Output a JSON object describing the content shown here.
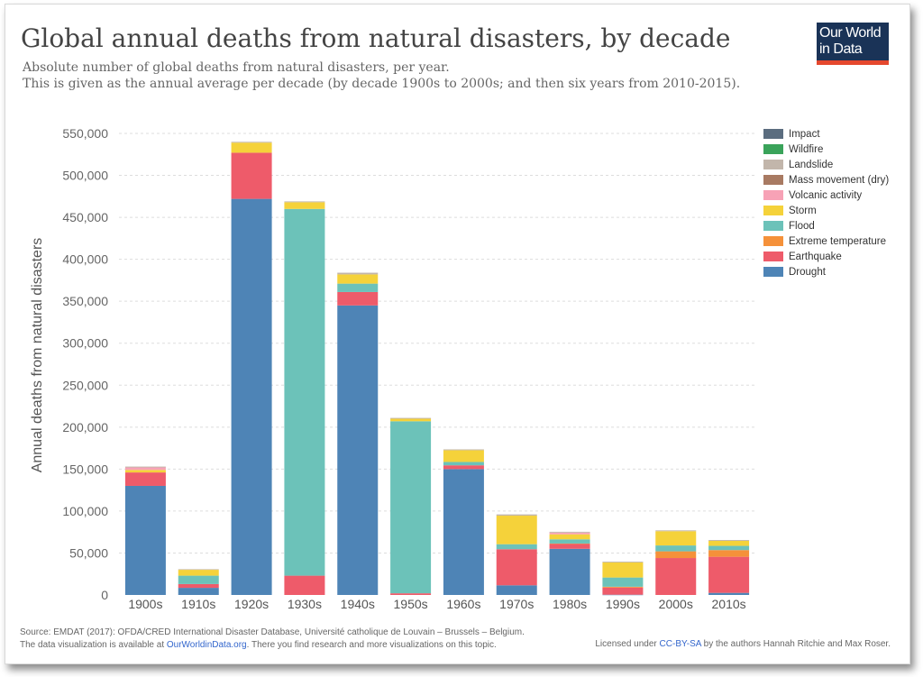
{
  "header": {
    "title": "Global annual deaths from natural disasters, by decade",
    "subtitle_line1": "Absolute number of global deaths from natural disasters, per year.",
    "subtitle_line2": "This is given as the annual average per decade (by decade 1900s to 2000s; and then six years from 2010-2015).",
    "logo_line1": "Our World",
    "logo_line2": "in Data"
  },
  "footer": {
    "source": "Source: EMDAT (2017): OFDA/CRED International Disaster Database, Université catholique de Louvain – Brussels – Belgium.",
    "availability_prefix": "The data visualization is available at ",
    "availability_link": "OurWorldinData.org",
    "availability_suffix": ". There you find research and more visualizations on this topic.",
    "license_prefix": "Licensed under ",
    "license_link": "CC-BY-SA",
    "license_suffix": " by the authors Hannah Ritchie and Max Roser."
  },
  "chart_data": {
    "type": "bar",
    "stacked": true,
    "title": "Global annual deaths from natural disasters, by decade",
    "xlabel": "",
    "ylabel": "Annual deaths from natural disasters",
    "ylim": [
      0,
      550000
    ],
    "yticks": [
      0,
      50000,
      100000,
      150000,
      200000,
      250000,
      300000,
      350000,
      400000,
      450000,
      500000,
      550000
    ],
    "ytick_labels": [
      "0",
      "50,000",
      "100,000",
      "150,000",
      "200,000",
      "250,000",
      "300,000",
      "350,000",
      "400,000",
      "450,000",
      "500,000",
      "550,000"
    ],
    "grid": true,
    "legend_position": "top-right",
    "categories": [
      "1900s",
      "1910s",
      "1920s",
      "1930s",
      "1940s",
      "1950s",
      "1960s",
      "1970s",
      "1980s",
      "1990s",
      "2000s",
      "2010s"
    ],
    "series": [
      {
        "name": "Drought",
        "color": "#4e84b6",
        "values": [
          130000,
          8500,
          472000,
          0,
          345000,
          0,
          150000,
          11500,
          55000,
          300,
          0,
          2500
        ]
      },
      {
        "name": "Earthquake",
        "color": "#ee5b6a",
        "values": [
          16000,
          4500,
          55000,
          23000,
          16000,
          2000,
          4500,
          43000,
          6000,
          8500,
          44000,
          43000
        ]
      },
      {
        "name": "Extreme temperature",
        "color": "#f5913a",
        "values": [
          0,
          0,
          0,
          0,
          0,
          0,
          0,
          0,
          300,
          1000,
          8000,
          8000
        ]
      },
      {
        "name": "Flood",
        "color": "#6cc2b9",
        "values": [
          0,
          10000,
          0,
          437000,
          10000,
          205000,
          4000,
          6000,
          5000,
          11000,
          7000,
          5000
        ]
      },
      {
        "name": "Storm",
        "color": "#f5d23a",
        "values": [
          3000,
          7000,
          12000,
          8000,
          11000,
          3000,
          14000,
          34000,
          6000,
          18000,
          17000,
          6000
        ]
      },
      {
        "name": "Volcanic activity",
        "color": "#f7a2b6",
        "values": [
          3000,
          0,
          0,
          0,
          0,
          0,
          0,
          0,
          2000,
          0,
          0,
          0
        ]
      },
      {
        "name": "Mass movement (dry)",
        "color": "#a87a62",
        "values": [
          0,
          0,
          0,
          0,
          0,
          0,
          0,
          0,
          0,
          0,
          0,
          0
        ]
      },
      {
        "name": "Landslide",
        "color": "#c2b6ab",
        "values": [
          1000,
          700,
          1000,
          1000,
          2000,
          1000,
          1000,
          1500,
          1000,
          1000,
          1000,
          1000
        ]
      },
      {
        "name": "Wildfire",
        "color": "#3aa35a",
        "values": [
          0,
          0,
          0,
          0,
          0,
          0,
          0,
          0,
          0,
          0,
          0,
          0
        ]
      },
      {
        "name": "Impact",
        "color": "#5b6d7f",
        "values": [
          0,
          0,
          0,
          0,
          0,
          0,
          0,
          0,
          0,
          0,
          0,
          0
        ]
      }
    ],
    "legend_order": [
      "Impact",
      "Wildfire",
      "Landslide",
      "Mass movement (dry)",
      "Volcanic activity",
      "Storm",
      "Flood",
      "Extreme temperature",
      "Earthquake",
      "Drought"
    ]
  }
}
